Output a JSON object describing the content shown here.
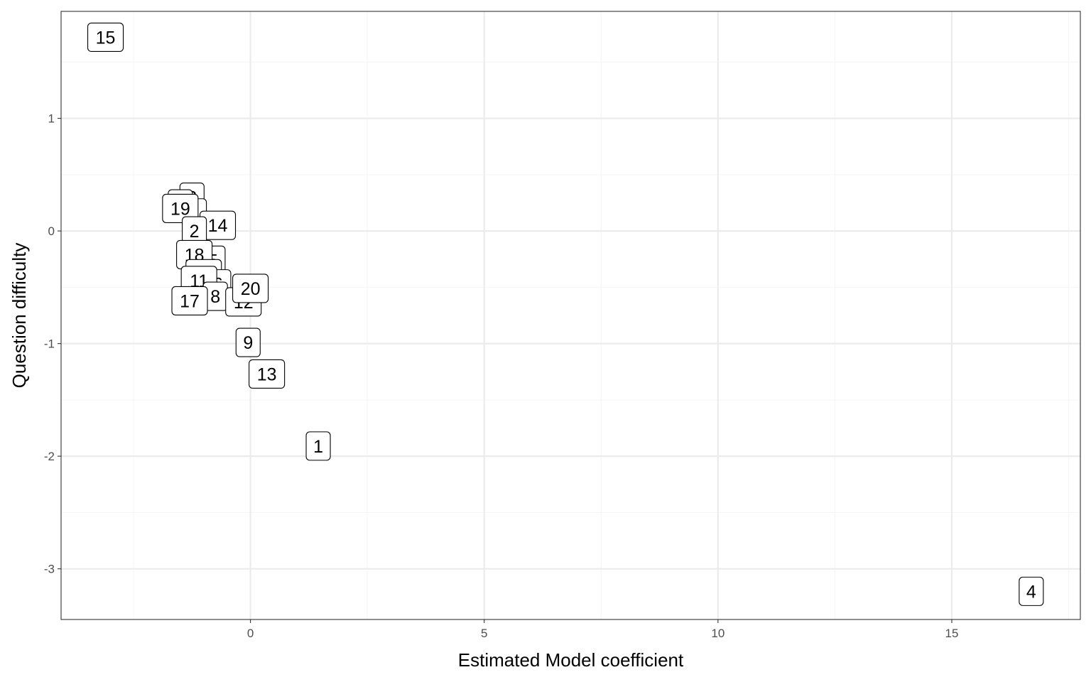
{
  "chart_data": {
    "type": "scatter",
    "title": "",
    "xlabel": "Estimated Model coefficient",
    "ylabel": "Question difficulty",
    "xlim": [
      -4.05,
      17.75
    ],
    "ylim": [
      -3.45,
      1.95
    ],
    "x_ticks": [
      0,
      5,
      10,
      15
    ],
    "y_ticks": [
      -3,
      -2,
      -1,
      0,
      1
    ],
    "x_tick_labels": [
      "0",
      "5",
      "10",
      "15"
    ],
    "y_tick_labels": [
      "-3",
      "-2",
      "-1",
      "0",
      "1"
    ],
    "grid": true,
    "legend": "none",
    "points": [
      {
        "label": "15",
        "x": -3.1,
        "y": 1.72
      },
      {
        "label": "3",
        "x": -1.25,
        "y": 0.3
      },
      {
        "label": "7",
        "x": -1.5,
        "y": 0.24
      },
      {
        "label": "6",
        "x": -1.2,
        "y": 0.16
      },
      {
        "label": "19",
        "x": -1.5,
        "y": 0.2
      },
      {
        "label": "14",
        "x": -0.7,
        "y": 0.05
      },
      {
        "label": "2",
        "x": -1.2,
        "y": 0.0
      },
      {
        "label": "5",
        "x": -0.8,
        "y": -0.26
      },
      {
        "label": "18",
        "x": -1.2,
        "y": -0.21
      },
      {
        "label": "10",
        "x": -1.0,
        "y": -0.38
      },
      {
        "label": "16",
        "x": -0.8,
        "y": -0.47
      },
      {
        "label": "11",
        "x": -1.1,
        "y": -0.44
      },
      {
        "label": "8",
        "x": -0.75,
        "y": -0.58
      },
      {
        "label": "12",
        "x": -0.15,
        "y": -0.63
      },
      {
        "label": "20",
        "x": 0.0,
        "y": -0.51
      },
      {
        "label": "17",
        "x": -1.3,
        "y": -0.62
      },
      {
        "label": "9",
        "x": -0.05,
        "y": -0.99
      },
      {
        "label": "13",
        "x": 0.35,
        "y": -1.27
      },
      {
        "label": "1",
        "x": 1.45,
        "y": -1.91
      },
      {
        "label": "4",
        "x": 16.7,
        "y": -3.2
      }
    ]
  },
  "colors": {
    "panel_border": "#333333",
    "grid_major": "#ebebeb",
    "grid_minor": "#f5f5f5",
    "tick": "#333333",
    "text": "#000000",
    "tick_text": "#4d4d4d"
  }
}
